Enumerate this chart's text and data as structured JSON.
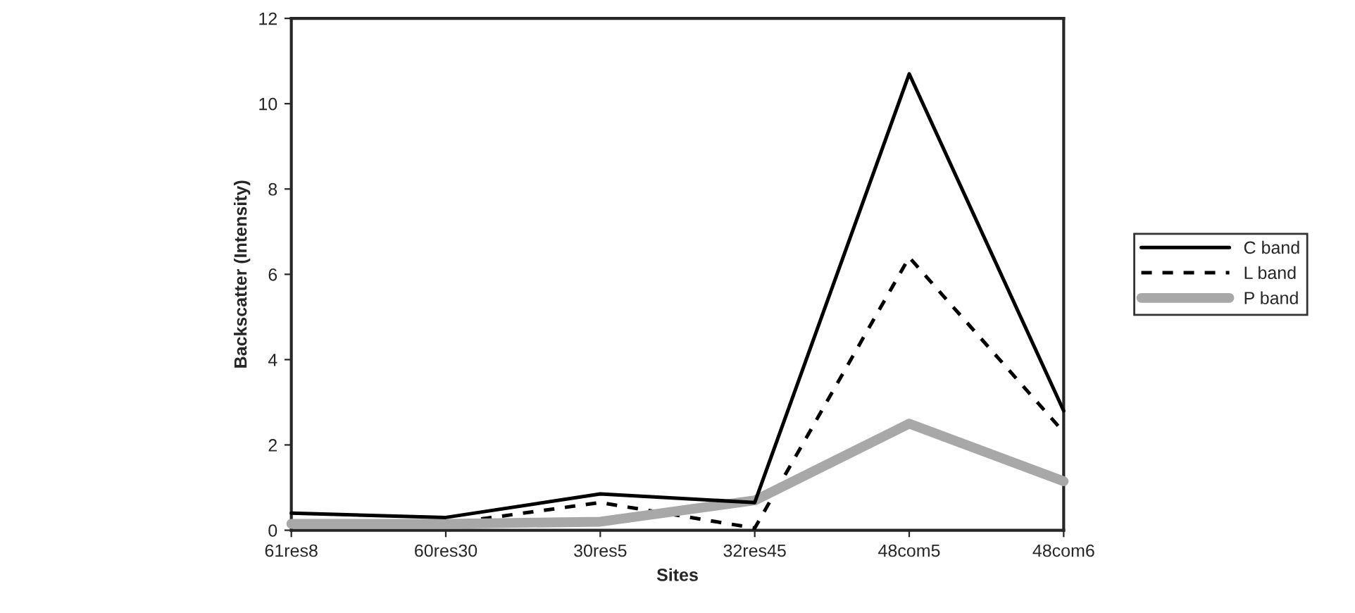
{
  "chart_data": {
    "type": "line",
    "xlabel": "Sites",
    "ylabel": "Backscatter (Intensity)",
    "categories": [
      "61res8",
      "60res30",
      "30res5",
      "32res45",
      "48com5",
      "48com6"
    ],
    "series": [
      {
        "name": "C band",
        "color": "#000000",
        "line_style": "solid",
        "values": [
          0.4,
          0.3,
          0.85,
          0.65,
          10.7,
          2.8
        ]
      },
      {
        "name": "L band",
        "color": "#000000",
        "line_style": "dashed",
        "values": [
          0.1,
          0.15,
          0.65,
          0.05,
          6.4,
          2.3
        ]
      },
      {
        "name": "P band",
        "color": "#a8a8a8",
        "line_style": "solid",
        "values": [
          0.15,
          0.15,
          0.2,
          0.7,
          2.5,
          1.15
        ]
      }
    ],
    "ylim": [
      0,
      12
    ],
    "yticks": [
      0,
      2,
      4,
      6,
      8,
      10,
      12
    ],
    "grid": false,
    "legend": "right",
    "marker": "none"
  }
}
